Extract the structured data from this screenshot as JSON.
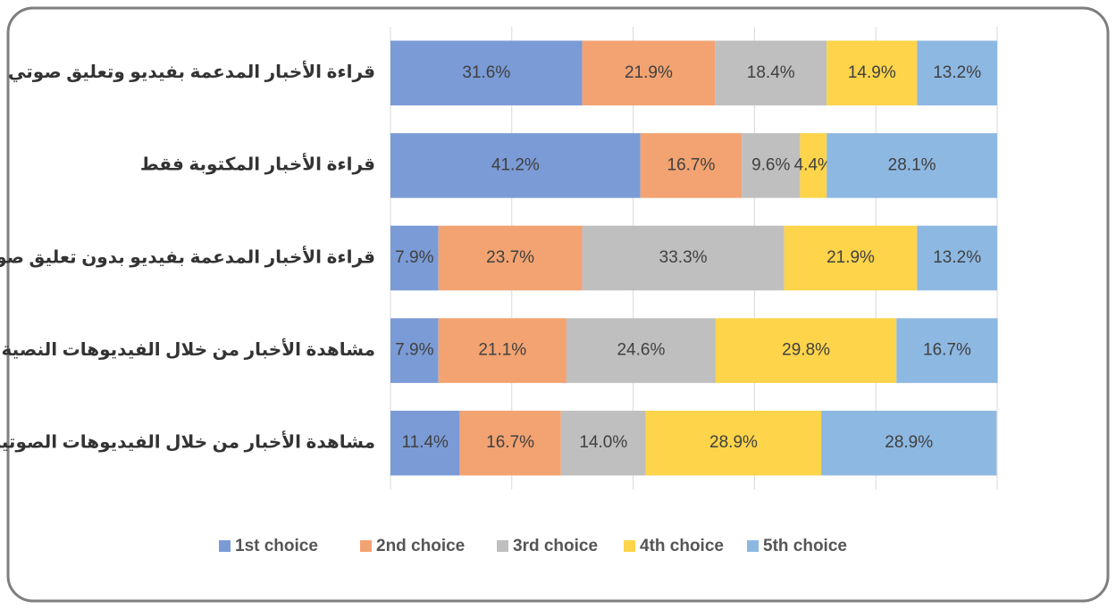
{
  "chart_data": {
    "type": "stacked_barh",
    "categories": [
      "قراءة الأخبار المدعمة بفيديو وتعليق صوتي",
      "قراءة الأخبار المكتوبة فقط",
      "قراءة الأخبار المدعمة بفيديو بدون تعليق صوتي",
      "مشاهدة الأخبار من خلال الفيديوهات النصية",
      "مشاهدة الأخبار من خلال الفيديوهات الصوتية"
    ],
    "series": [
      {
        "name": "1st choice",
        "color": "#7a9bd6",
        "values": [
          31.6,
          41.2,
          7.9,
          7.9,
          11.4
        ],
        "value_labels": [
          "31.6%",
          "41.2%",
          "7.9%",
          "7.9%",
          "11.4%"
        ]
      },
      {
        "name": "2nd choice",
        "color": "#f2a371",
        "values": [
          21.9,
          16.7,
          23.7,
          21.1,
          16.7
        ],
        "value_labels": [
          "21.9%",
          "16.7%",
          "23.7%",
          "21.1%",
          "16.7%"
        ]
      },
      {
        "name": "3rd choice",
        "color": "#bfbfbf",
        "values": [
          18.4,
          9.6,
          33.3,
          24.6,
          14.0
        ],
        "value_labels": [
          "18.4%",
          "9.6%",
          "33.3%",
          "24.6%",
          "14.0%"
        ]
      },
      {
        "name": "4th choice",
        "color": "#fdd44a",
        "values": [
          14.9,
          4.4,
          21.9,
          29.8,
          28.9
        ],
        "value_labels": [
          "14.9%",
          "4.4%",
          "21.9%",
          "29.8%",
          "28.9%"
        ]
      },
      {
        "name": "5th choice",
        "color": "#8db8e2",
        "values": [
          13.2,
          28.1,
          13.2,
          16.7,
          28.9
        ],
        "value_labels": [
          "13.2%",
          "28.1%",
          "13.2%",
          "16.7%",
          "28.9%"
        ]
      }
    ],
    "xlim": [
      0,
      100
    ],
    "xticks": [
      0,
      20,
      40,
      60,
      80,
      100
    ],
    "grid": true,
    "legend": "bottom"
  }
}
